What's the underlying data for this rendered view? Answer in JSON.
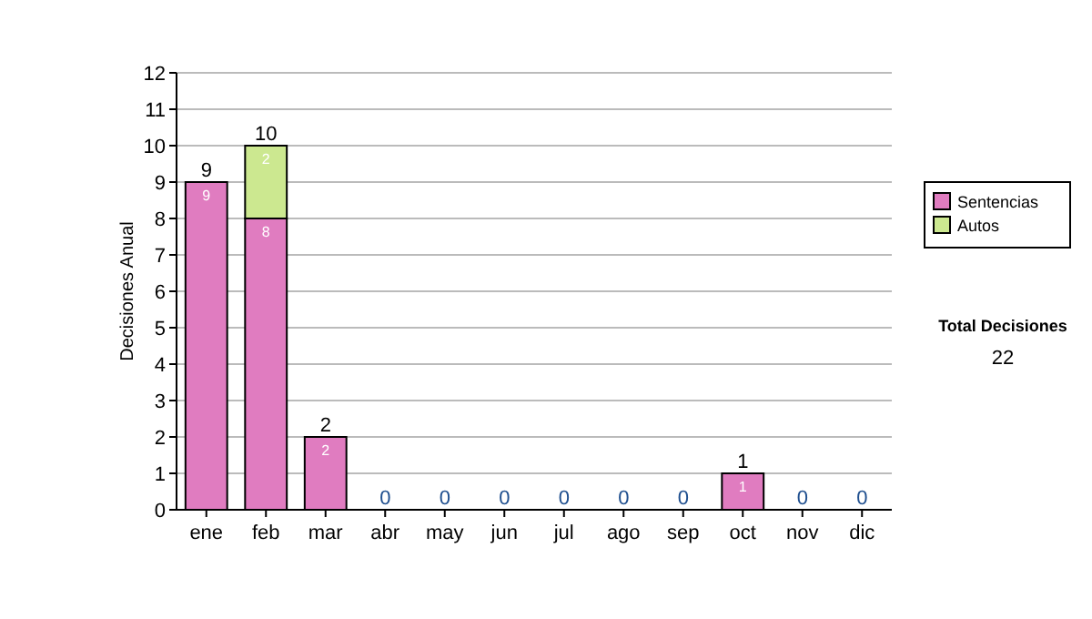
{
  "chart_data": {
    "type": "bar",
    "ylabel": "Decisiones Anual",
    "categories": [
      "ene",
      "feb",
      "mar",
      "abr",
      "may",
      "jun",
      "jul",
      "ago",
      "sep",
      "oct",
      "nov",
      "dic"
    ],
    "series": [
      {
        "name": "Sentencias",
        "color": "#e07cc0",
        "values": [
          9,
          8,
          2,
          0,
          0,
          0,
          0,
          0,
          0,
          1,
          0,
          0
        ],
        "value_labels": [
          "9",
          "8",
          "2",
          null,
          null,
          null,
          null,
          null,
          null,
          "1",
          null,
          null
        ]
      },
      {
        "name": "Autos",
        "color": "#cce890",
        "values": [
          0,
          2,
          0,
          0,
          0,
          0,
          0,
          0,
          0,
          0,
          0,
          0
        ],
        "value_labels": [
          null,
          "2",
          null,
          null,
          null,
          null,
          null,
          null,
          null,
          null,
          null,
          null
        ]
      }
    ],
    "stacked": true,
    "totals": [
      "9",
      "10",
      "2",
      "0",
      "0",
      "0",
      "0",
      "0",
      "0",
      "1",
      "0",
      "0"
    ],
    "ylim": [
      0,
      12
    ],
    "yticks": [
      0,
      1,
      2,
      3,
      4,
      5,
      6,
      7,
      8,
      9,
      10,
      11,
      12
    ],
    "grid": "y",
    "legend": "right",
    "annotations": [
      "Total Decisiones",
      "22"
    ]
  }
}
